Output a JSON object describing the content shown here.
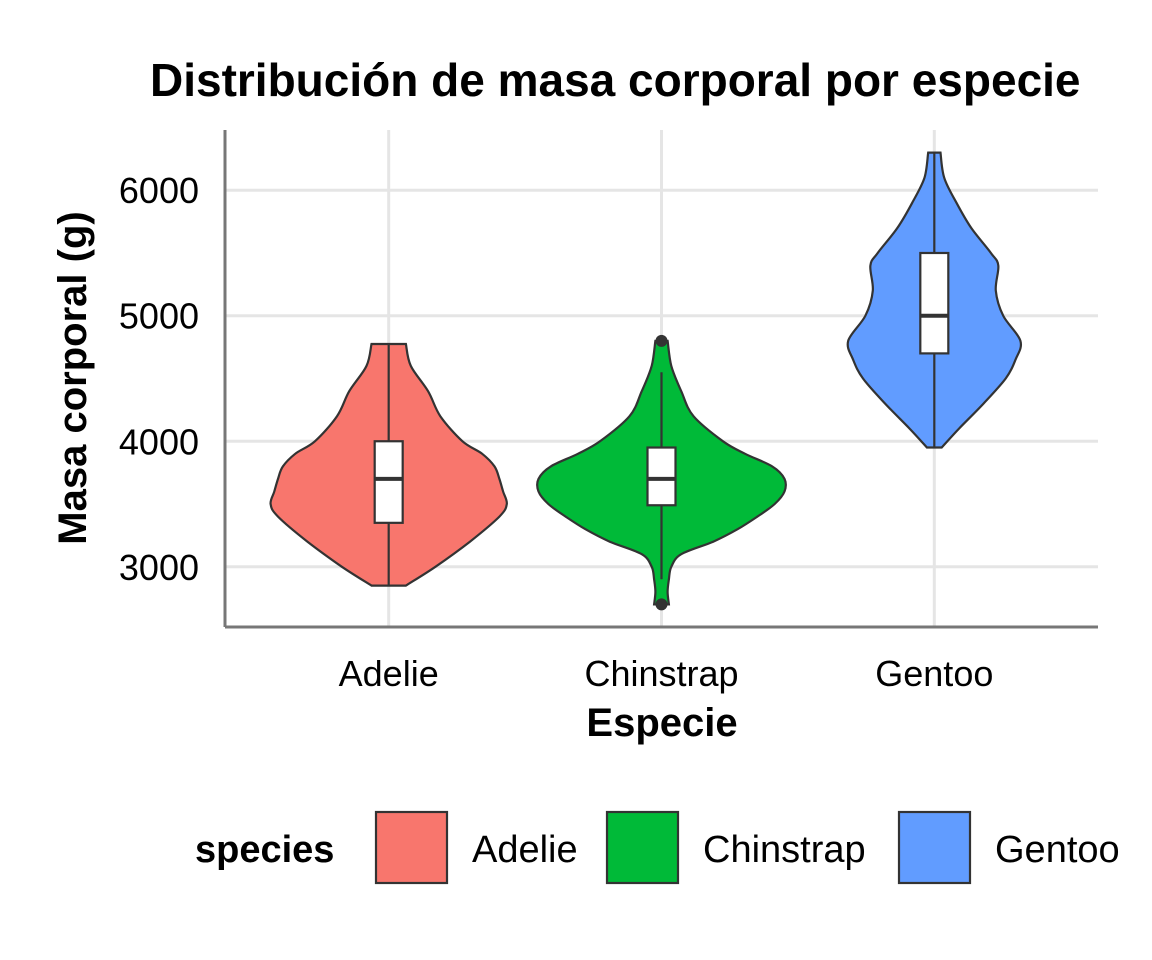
{
  "chart_data": {
    "type": "violin",
    "title": "Distribución de masa corporal por especie",
    "xlabel": "Especie",
    "ylabel": "Masa corporal (g)",
    "categories": [
      "Adelie",
      "Chinstrap",
      "Gentoo"
    ],
    "ylim": [
      2520,
      6480
    ],
    "yticks": [
      3000,
      4000,
      5000,
      6000
    ],
    "grid": true,
    "legend": {
      "title": "species",
      "position": "bottom",
      "entries": [
        "Adelie",
        "Chinstrap",
        "Gentoo"
      ]
    },
    "colors": {
      "Adelie": "#F8766D",
      "Chinstrap": "#00BA38",
      "Gentoo": "#619CFF"
    },
    "series": [
      {
        "name": "Adelie",
        "color": "#F8766D",
        "violin_profile": [
          [
            2850,
            0.14
          ],
          [
            3000,
            0.38
          ],
          [
            3200,
            0.66
          ],
          [
            3400,
            0.9
          ],
          [
            3500,
            0.96
          ],
          [
            3600,
            0.93
          ],
          [
            3700,
            0.9
          ],
          [
            3800,
            0.86
          ],
          [
            3900,
            0.76
          ],
          [
            4000,
            0.6
          ],
          [
            4200,
            0.42
          ],
          [
            4400,
            0.32
          ],
          [
            4600,
            0.18
          ],
          [
            4775,
            0.14
          ]
        ],
        "box": {
          "min": 2850,
          "q1": 3350,
          "median": 3700,
          "q3": 4000,
          "max": 4775
        },
        "outliers": []
      },
      {
        "name": "Chinstrap",
        "color": "#00BA38",
        "violin_profile": [
          [
            2700,
            0.06
          ],
          [
            2800,
            0.05
          ],
          [
            2900,
            0.06
          ],
          [
            3000,
            0.08
          ],
          [
            3100,
            0.16
          ],
          [
            3200,
            0.42
          ],
          [
            3300,
            0.62
          ],
          [
            3400,
            0.78
          ],
          [
            3500,
            0.92
          ],
          [
            3600,
            1.0
          ],
          [
            3700,
            1.0
          ],
          [
            3800,
            0.9
          ],
          [
            3900,
            0.68
          ],
          [
            4000,
            0.5
          ],
          [
            4200,
            0.26
          ],
          [
            4400,
            0.16
          ],
          [
            4600,
            0.08
          ],
          [
            4800,
            0.05
          ]
        ],
        "box": {
          "min": 2900,
          "q1": 3490,
          "median": 3700,
          "q3": 3950,
          "max": 4550
        },
        "outliers": [
          2700,
          4800
        ]
      },
      {
        "name": "Gentoo",
        "color": "#619CFF",
        "violin_profile": [
          [
            3950,
            0.06
          ],
          [
            4100,
            0.2
          ],
          [
            4300,
            0.4
          ],
          [
            4500,
            0.58
          ],
          [
            4650,
            0.66
          ],
          [
            4800,
            0.7
          ],
          [
            5000,
            0.56
          ],
          [
            5200,
            0.5
          ],
          [
            5400,
            0.52
          ],
          [
            5500,
            0.46
          ],
          [
            5700,
            0.3
          ],
          [
            5900,
            0.18
          ],
          [
            6100,
            0.08
          ],
          [
            6300,
            0.05
          ]
        ],
        "box": {
          "min": 3950,
          "q1": 4700,
          "median": 5000,
          "q3": 5500,
          "max": 6300
        },
        "outliers": []
      }
    ]
  }
}
